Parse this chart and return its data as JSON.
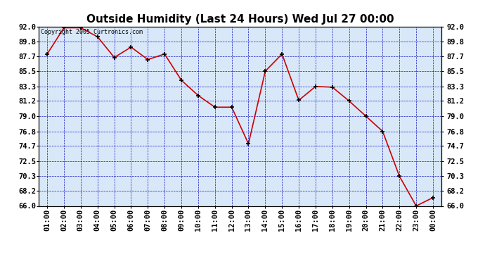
{
  "title": "Outside Humidity (Last 24 Hours) Wed Jul 27 00:00",
  "copyright": "Copyright 2005 Curtronics.com",
  "x_labels": [
    "01:00",
    "02:00",
    "03:00",
    "04:00",
    "05:00",
    "06:00",
    "07:00",
    "08:00",
    "09:00",
    "10:00",
    "11:00",
    "12:00",
    "13:00",
    "14:00",
    "15:00",
    "16:00",
    "17:00",
    "18:00",
    "19:00",
    "20:00",
    "21:00",
    "22:00",
    "23:00",
    "00:00"
  ],
  "y_values": [
    88.0,
    91.8,
    91.8,
    90.5,
    87.5,
    89.0,
    87.2,
    88.0,
    84.2,
    82.0,
    80.3,
    80.3,
    75.0,
    85.5,
    88.0,
    81.3,
    83.3,
    83.2,
    81.2,
    79.0,
    76.8,
    70.3,
    66.0,
    67.2
  ],
  "ylim_min": 66.0,
  "ylim_max": 92.0,
  "yticks": [
    66.0,
    68.2,
    70.3,
    72.5,
    74.7,
    76.8,
    79.0,
    81.2,
    83.3,
    85.5,
    87.7,
    89.8,
    92.0
  ],
  "line_color": "#cc0000",
  "marker_color": "#000000",
  "bg_color": "#ffffff",
  "plot_bg": "#d8e8f8",
  "grid_color": "#0000bb",
  "title_fontsize": 11,
  "tick_fontsize": 7.5
}
